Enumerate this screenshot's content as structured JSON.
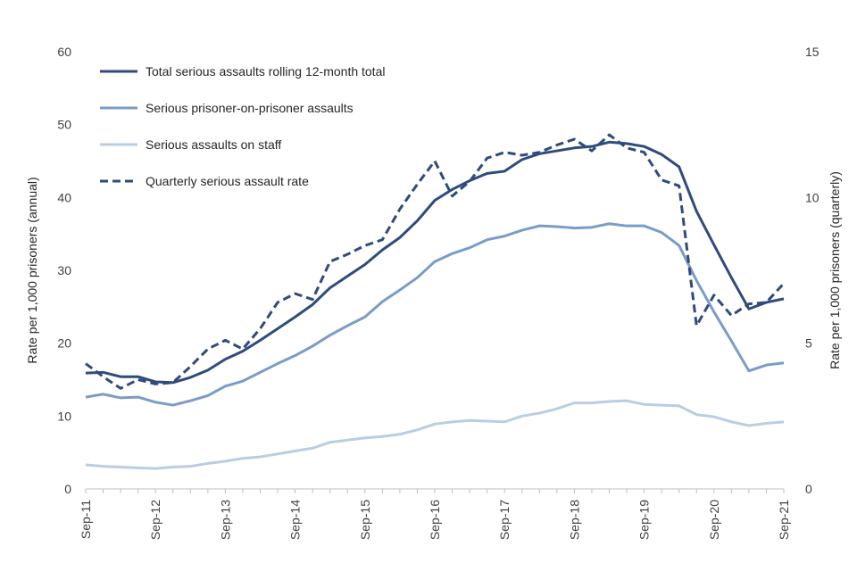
{
  "chart_data": {
    "type": "line",
    "title": "",
    "ylabel_left": "Rate per 1,000 prisoners (annual)",
    "ylabel_right": "Rate per 1,000 prisoners (quarterly)",
    "ylim_left": [
      0,
      60
    ],
    "ylim_right": [
      0,
      15
    ],
    "yticks_left": [
      0,
      10,
      20,
      30,
      40,
      50,
      60
    ],
    "yticks_right": [
      0,
      5,
      10,
      15
    ],
    "x_tick_labels": [
      "Sep-11",
      "Sep-12",
      "Sep-13",
      "Sep-14",
      "Sep-15",
      "Sep-16",
      "Sep-17",
      "Sep-18",
      "Sep-19",
      "Sep-20",
      "Sep-21"
    ],
    "x_quarters": [
      "Sep-11",
      "Dec-11",
      "Mar-12",
      "Jun-12",
      "Sep-12",
      "Dec-12",
      "Mar-13",
      "Jun-13",
      "Sep-13",
      "Dec-13",
      "Mar-14",
      "Jun-14",
      "Sep-14",
      "Dec-14",
      "Mar-15",
      "Jun-15",
      "Sep-15",
      "Dec-15",
      "Mar-16",
      "Jun-16",
      "Sep-16",
      "Dec-16",
      "Mar-17",
      "Jun-17",
      "Sep-17",
      "Dec-17",
      "Mar-18",
      "Jun-18",
      "Sep-18",
      "Dec-18",
      "Mar-19",
      "Jun-19",
      "Sep-19",
      "Dec-19",
      "Mar-20",
      "Jun-20",
      "Sep-20",
      "Dec-20",
      "Mar-21",
      "Jun-21",
      "Sep-21"
    ],
    "legend_position": "top-left",
    "series": [
      {
        "name": "Total serious assaults rolling 12-month total",
        "axis": "left",
        "color": "#2f4b7c",
        "dash": "solid",
        "values": [
          15.9,
          16.0,
          15.4,
          15.4,
          14.7,
          14.6,
          15.3,
          16.3,
          17.8,
          18.9,
          20.4,
          22.0,
          23.6,
          25.3,
          27.6,
          29.2,
          30.8,
          32.8,
          34.5,
          36.8,
          39.6,
          41.1,
          42.3,
          43.3,
          43.6,
          45.2,
          46.0,
          46.4,
          46.8,
          47.0,
          47.6,
          47.4,
          47.0,
          45.9,
          44.2,
          38.1,
          33.5,
          29.0,
          24.7,
          25.6,
          26.1
        ]
      },
      {
        "name": "Serious prisoner-on-prisoner assaults",
        "axis": "left",
        "color": "#7a9cc6",
        "dash": "solid",
        "values": [
          12.6,
          13.0,
          12.5,
          12.6,
          11.9,
          11.5,
          12.1,
          12.8,
          14.1,
          14.8,
          16.0,
          17.2,
          18.3,
          19.6,
          21.1,
          22.4,
          23.6,
          25.7,
          27.3,
          29.0,
          31.2,
          32.3,
          33.1,
          34.2,
          34.7,
          35.5,
          36.1,
          36.0,
          35.8,
          35.9,
          36.4,
          36.1,
          36.1,
          35.2,
          33.4,
          28.6,
          24.3,
          20.3,
          16.2,
          17.0,
          17.3
        ]
      },
      {
        "name": "Serious assaults on staff",
        "axis": "left",
        "color": "#b9cde3",
        "dash": "solid",
        "values": [
          3.3,
          3.1,
          3.0,
          2.9,
          2.8,
          3.0,
          3.1,
          3.5,
          3.8,
          4.2,
          4.4,
          4.8,
          5.2,
          5.6,
          6.4,
          6.7,
          7.0,
          7.2,
          7.5,
          8.1,
          8.9,
          9.2,
          9.4,
          9.3,
          9.2,
          10.0,
          10.4,
          11.0,
          11.8,
          11.8,
          12.0,
          12.1,
          11.6,
          11.5,
          11.4,
          10.2,
          9.9,
          9.2,
          8.7,
          9.0,
          9.2
        ]
      },
      {
        "name": "Quarterly serious assault rate",
        "axis": "right",
        "color": "#2f4b7c",
        "dash": "dashed",
        "values": [
          4.3,
          3.85,
          3.45,
          3.75,
          3.6,
          3.65,
          4.2,
          4.8,
          5.1,
          4.8,
          5.5,
          6.4,
          6.7,
          6.5,
          7.8,
          8.05,
          8.35,
          8.55,
          9.6,
          10.45,
          11.25,
          10.05,
          10.55,
          11.35,
          11.55,
          11.45,
          11.55,
          11.8,
          12.0,
          11.6,
          12.15,
          11.7,
          11.55,
          10.6,
          10.4,
          5.6,
          6.65,
          5.95,
          6.35,
          6.4,
          7.05
        ]
      }
    ]
  }
}
